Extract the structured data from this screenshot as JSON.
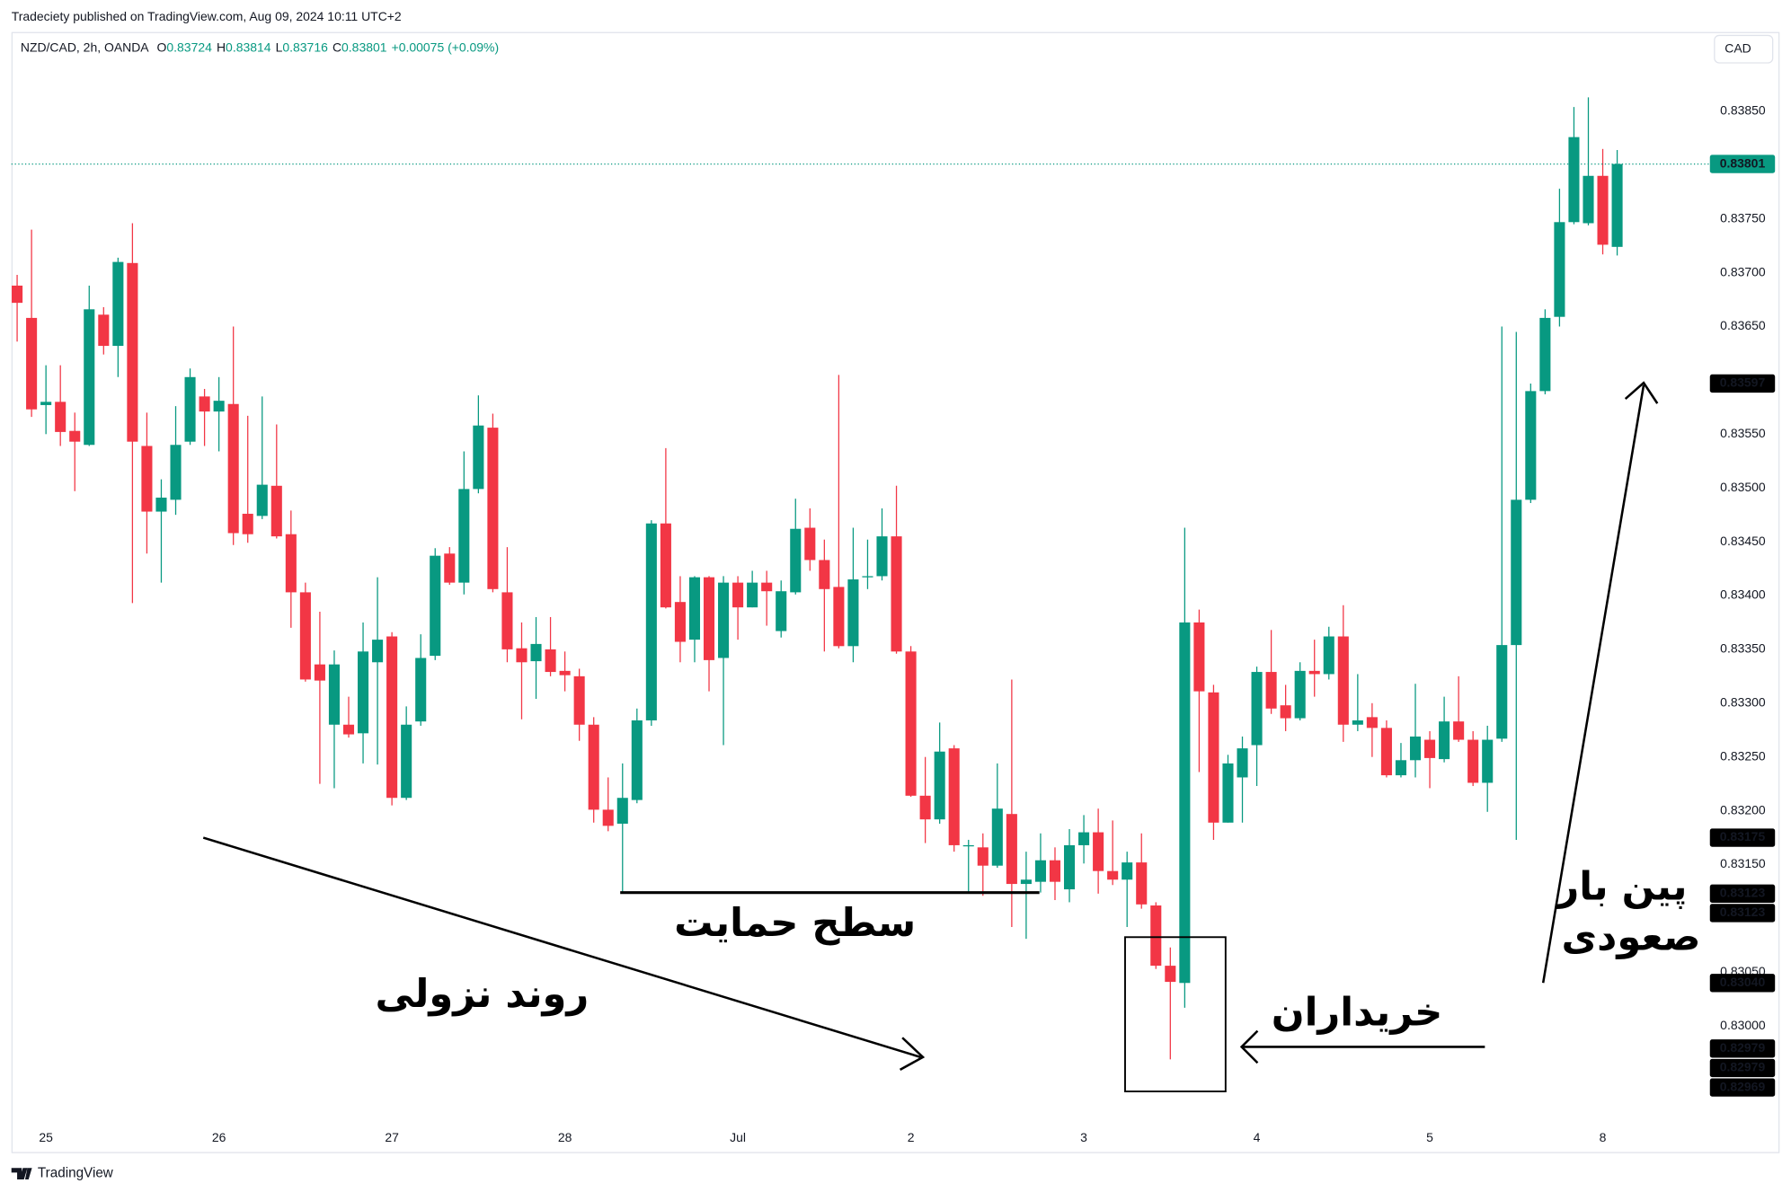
{
  "header": {
    "publisher": "Tradeciety published on TradingView.com, Aug 09, 2024 10:11 UTC+2",
    "symbol": "NZD/CAD, 2h, OANDA",
    "ohlc": [
      {
        "key": "O",
        "value": "0.83724"
      },
      {
        "key": "H",
        "value": "0.83814"
      },
      {
        "key": "L",
        "value": "0.83716"
      },
      {
        "key": "C",
        "value": "0.83801"
      }
    ],
    "change": "+0.00075 (+0.09%)",
    "currency": "CAD"
  },
  "footer": {
    "brand": "TradingView"
  },
  "chart_data": {
    "type": "candlestick",
    "up_color": "#089981",
    "down_color": "#f23645",
    "grid": false,
    "categories": [
      null,
      null,
      "25",
      null,
      null,
      null,
      null,
      null,
      null,
      null,
      null,
      null,
      null,
      null,
      "26",
      null,
      null,
      null,
      null,
      null,
      null,
      null,
      null,
      null,
      null,
      null,
      "27",
      null,
      null,
      null,
      null,
      null,
      null,
      null,
      null,
      null,
      null,
      null,
      "28",
      null,
      null,
      null,
      null,
      null,
      null,
      null,
      null,
      null,
      null,
      null,
      "Jul",
      null,
      null,
      null,
      null,
      null,
      null,
      null,
      null,
      null,
      null,
      null,
      "2",
      null,
      null,
      null,
      null,
      null,
      null,
      null,
      null,
      null,
      null,
      null,
      "3",
      null,
      null,
      null,
      null,
      null,
      null,
      null,
      null,
      null,
      null,
      null,
      "4",
      null,
      null,
      null,
      null,
      null,
      null,
      null,
      null,
      null,
      null,
      null,
      "5",
      null,
      null,
      null,
      null,
      null,
      null,
      null,
      null,
      null,
      null,
      null,
      "8",
      null
    ],
    "open": [
      0.83688,
      0.83658,
      0.83577,
      0.8358,
      0.83553,
      0.8354,
      0.83661,
      0.83632,
      0.83709,
      0.83539,
      0.83478,
      0.83489,
      0.83543,
      0.83585,
      0.83571,
      0.83578,
      0.83476,
      0.83474,
      0.83502,
      0.83457,
      0.83403,
      0.83336,
      0.8328,
      0.8328,
      0.83272,
      0.83338,
      0.83362,
      0.83212,
      0.83283,
      0.83344,
      0.83439,
      0.83412,
      0.83499,
      0.83556,
      0.83403,
      0.83351,
      0.83339,
      0.8335,
      0.8333,
      0.83325,
      0.8328,
      0.83201,
      0.83188,
      0.8321,
      0.83284,
      0.83467,
      0.83394,
      0.83359,
      0.83417,
      0.83342,
      0.83412,
      0.83389,
      0.83412,
      0.83367,
      0.83403,
      0.83463,
      0.83433,
      0.83408,
      0.83353,
      0.83417,
      0.83418,
      0.83455,
      0.83348,
      0.83214,
      0.83192,
      0.83258,
      0.83168,
      0.83166,
      0.83149,
      0.83197,
      0.83132,
      0.83134,
      0.83154,
      0.83127,
      0.83168,
      0.8318,
      0.83144,
      0.83136,
      0.83152,
      0.83112,
      0.83056,
      0.8304,
      0.83375,
      0.8331,
      0.83189,
      0.83231,
      0.83261,
      0.83329,
      0.83298,
      0.83286,
      0.8333,
      0.83327,
      0.83362,
      0.8328,
      0.83287,
      0.83277,
      0.83233,
      0.83247,
      0.83266,
      0.83248,
      0.83283,
      0.83266,
      0.83226,
      0.83267,
      0.83354,
      0.83489,
      0.8359,
      0.83659,
      0.83747,
      0.83746,
      0.8379,
      0.83724
    ],
    "high": [
      0.83698,
      0.8374,
      0.83614,
      0.83614,
      0.8357,
      0.83688,
      0.83668,
      0.83714,
      0.83746,
      0.8357,
      0.83508,
      0.83576,
      0.83611,
      0.83592,
      0.83603,
      0.8365,
      0.83567,
      0.83585,
      0.83559,
      0.83479,
      0.83412,
      0.83385,
      0.83349,
      0.83306,
      0.83375,
      0.83417,
      0.83366,
      0.83297,
      0.83364,
      0.83444,
      0.83445,
      0.83534,
      0.83586,
      0.83569,
      0.83445,
      0.83375,
      0.8338,
      0.8338,
      0.83348,
      0.83332,
      0.83287,
      0.83231,
      0.83244,
      0.83295,
      0.8347,
      0.83537,
      0.83418,
      0.83418,
      0.83418,
      0.83418,
      0.83418,
      0.83423,
      0.83423,
      0.83414,
      0.8349,
      0.83481,
      0.83452,
      0.83605,
      0.83463,
      0.83452,
      0.83481,
      0.83502,
      0.83353,
      0.8325,
      0.83282,
      0.83261,
      0.83173,
      0.83179,
      0.83244,
      0.83322,
      0.83162,
      0.83179,
      0.83166,
      0.83183,
      0.83196,
      0.83202,
      0.83191,
      0.83162,
      0.83179,
      0.83115,
      0.83073,
      0.83463,
      0.83387,
      0.83317,
      0.83252,
      0.83269,
      0.83334,
      0.83368,
      0.83317,
      0.83338,
      0.83359,
      0.83371,
      0.83391,
      0.83327,
      0.833,
      0.83284,
      0.83263,
      0.83318,
      0.83274,
      0.83306,
      0.83325,
      0.83274,
      0.83279,
      0.8365,
      0.83645,
      0.83597,
      0.83666,
      0.83778,
      0.83854,
      0.83863,
      0.83815,
      0.83814
    ],
    "low": [
      0.83636,
      0.83566,
      0.8355,
      0.83539,
      0.83497,
      0.83539,
      0.83624,
      0.83603,
      0.83393,
      0.83439,
      0.83412,
      0.83475,
      0.8354,
      0.83539,
      0.83534,
      0.83447,
      0.83449,
      0.83471,
      0.83453,
      0.8337,
      0.8332,
      0.83225,
      0.83221,
      0.83268,
      0.83244,
      0.83243,
      0.83205,
      0.8321,
      0.83279,
      0.8334,
      0.8341,
      0.83401,
      0.83495,
      0.83403,
      0.83338,
      0.83285,
      0.83304,
      0.83325,
      0.83311,
      0.83265,
      0.83189,
      0.83181,
      0.83124,
      0.83207,
      0.83279,
      0.83388,
      0.83338,
      0.83338,
      0.83311,
      0.83261,
      0.83359,
      0.83389,
      0.83372,
      0.83361,
      0.83401,
      0.83423,
      0.83348,
      0.83351,
      0.83338,
      0.83406,
      0.83414,
      0.83346,
      0.83213,
      0.8317,
      0.83188,
      0.83162,
      0.83124,
      0.83121,
      0.83147,
      0.83092,
      0.83081,
      0.83124,
      0.83117,
      0.83115,
      0.83151,
      0.83123,
      0.83131,
      0.83092,
      0.83109,
      0.83053,
      0.82969,
      0.83017,
      0.83236,
      0.83173,
      0.83189,
      0.83189,
      0.83223,
      0.8329,
      0.83274,
      0.83284,
      0.83306,
      0.83322,
      0.83264,
      0.83274,
      0.8325,
      0.83231,
      0.83231,
      0.83231,
      0.83221,
      0.83245,
      0.83264,
      0.83223,
      0.83199,
      0.83264,
      0.83173,
      0.83486,
      0.83587,
      0.8365,
      0.83745,
      0.83744,
      0.83717,
      0.83716
    ],
    "close": [
      0.83672,
      0.83573,
      0.8358,
      0.83552,
      0.83543,
      0.83666,
      0.83632,
      0.8371,
      0.83543,
      0.83478,
      0.83491,
      0.8354,
      0.83603,
      0.83571,
      0.83581,
      0.83458,
      0.83457,
      0.83503,
      0.83455,
      0.83403,
      0.83322,
      0.83321,
      0.83336,
      0.83271,
      0.83348,
      0.83359,
      0.83212,
      0.8328,
      0.83342,
      0.83437,
      0.83412,
      0.83499,
      0.83558,
      0.83406,
      0.8335,
      0.83338,
      0.83355,
      0.83329,
      0.83326,
      0.8328,
      0.83201,
      0.83186,
      0.83212,
      0.83284,
      0.83467,
      0.83389,
      0.83357,
      0.83417,
      0.8334,
      0.83412,
      0.83389,
      0.83412,
      0.83404,
      0.83404,
      0.83462,
      0.83433,
      0.83406,
      0.83353,
      0.83415,
      0.83418,
      0.83455,
      0.83348,
      0.83214,
      0.83192,
      0.83255,
      0.83168,
      0.83168,
      0.83149,
      0.83202,
      0.83132,
      0.83136,
      0.83154,
      0.83134,
      0.83168,
      0.8318,
      0.83144,
      0.83136,
      0.83152,
      0.83113,
      0.83056,
      0.83041,
      0.83375,
      0.83311,
      0.83189,
      0.83244,
      0.83258,
      0.83329,
      0.83295,
      0.83286,
      0.8333,
      0.83327,
      0.83362,
      0.8328,
      0.83284,
      0.83277,
      0.83233,
      0.83247,
      0.83269,
      0.83249,
      0.83283,
      0.83266,
      0.83226,
      0.83266,
      0.83354,
      0.83489,
      0.8359,
      0.83658,
      0.83747,
      0.83826,
      0.8379,
      0.83726,
      0.83801
    ],
    "ylim": [
      0.8291,
      0.83895
    ],
    "yticks": [
      {
        "value": 0.8385,
        "label": "0.83850"
      },
      {
        "value": 0.8375,
        "label": "0.83750"
      },
      {
        "value": 0.837,
        "label": "0.83700"
      },
      {
        "value": 0.8365,
        "label": "0.83650"
      },
      {
        "value": 0.8355,
        "label": "0.83550"
      },
      {
        "value": 0.835,
        "label": "0.83500"
      },
      {
        "value": 0.8345,
        "label": "0.83450"
      },
      {
        "value": 0.834,
        "label": "0.83400"
      },
      {
        "value": 0.8335,
        "label": "0.83350"
      },
      {
        "value": 0.833,
        "label": "0.83300"
      },
      {
        "value": 0.8325,
        "label": "0.83250"
      },
      {
        "value": 0.832,
        "label": "0.83200"
      },
      {
        "value": 0.8315,
        "label": "0.83150"
      },
      {
        "value": 0.8305,
        "label": "0.83050"
      },
      {
        "value": 0.83,
        "label": "0.83000"
      }
    ],
    "price_tags": [
      {
        "value": 0.83801,
        "label": "0.83801"
      },
      {
        "value": 0.83597,
        "label": "0.83597"
      },
      {
        "value": 0.83175,
        "label": "0.83175"
      },
      {
        "value": 0.83123,
        "label": "0.83123"
      },
      {
        "value": 0.83123,
        "label": "0.83123"
      },
      {
        "value": 0.8304,
        "label": "0.83040"
      },
      {
        "value": 0.82979,
        "label": "0.82979"
      },
      {
        "value": 0.82979,
        "label": "0.82979"
      },
      {
        "value": 0.82969,
        "label": "0.82969"
      }
    ],
    "annotations": {
      "downtrend": "روند نزولی",
      "support": "سطح حمایت",
      "buyers": "خریداران",
      "pin_bar_1": "پین بار",
      "pin_bar_2": "صعودی"
    }
  }
}
